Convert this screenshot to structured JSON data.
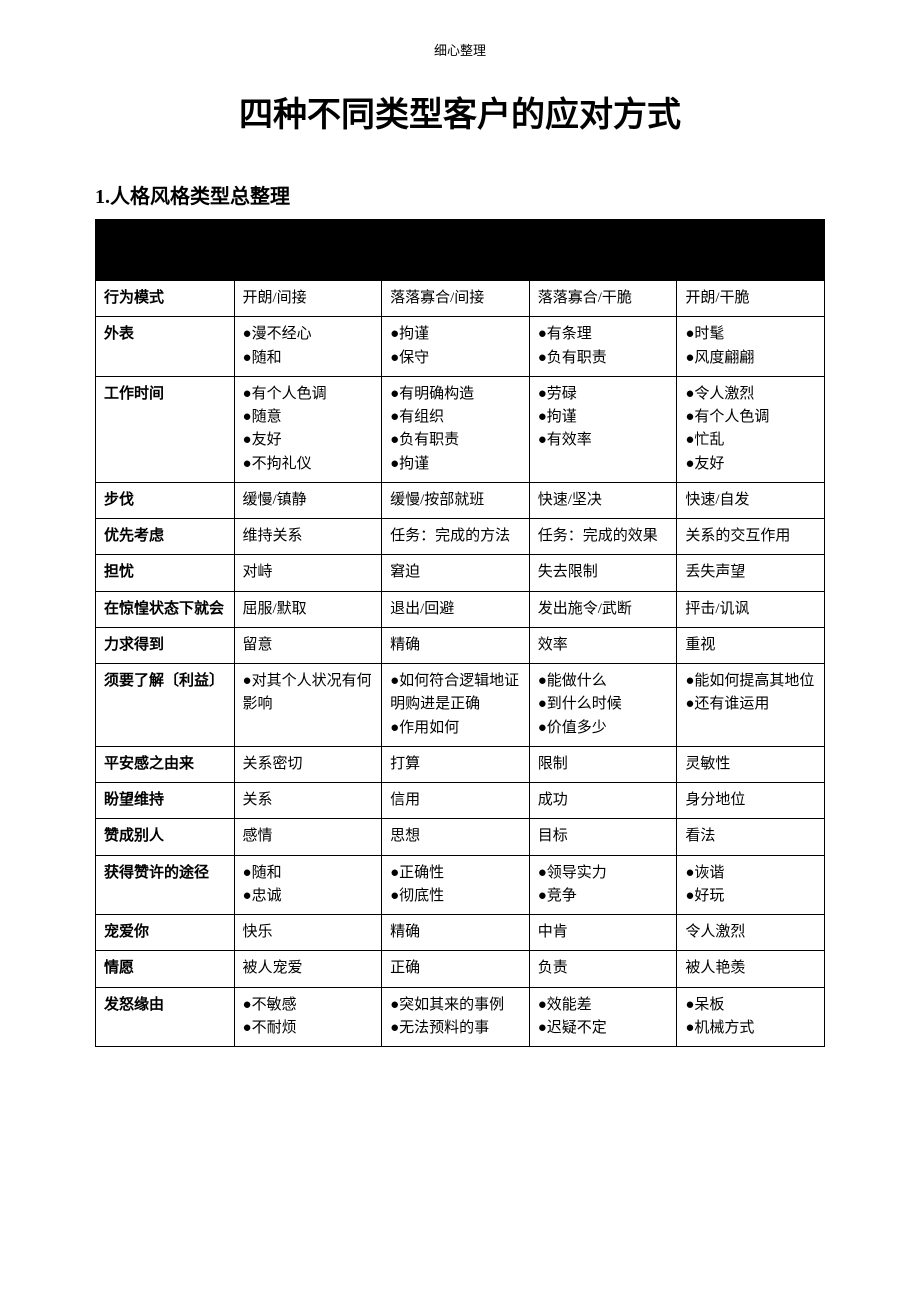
{
  "header_note": "细心整理",
  "main_title": "四种不同类型客户的应对方式",
  "section_title": "1.人格风格类型总整理",
  "table": {
    "background_color": "#ffffff",
    "border_color": "#000000",
    "header_bg": "#000000",
    "font_size": 15,
    "rows": [
      {
        "label": "行为模式",
        "c1": "开朗/间接",
        "c2": "落落寡合/间接",
        "c3": "落落寡合/干脆",
        "c4": "开朗/干脆"
      },
      {
        "label": "外表",
        "c1_list": [
          "漫不经心",
          "随和"
        ],
        "c2_list": [
          "拘谨",
          "保守"
        ],
        "c3_list": [
          "有条理",
          "负有职责"
        ],
        "c4_list": [
          "时髦",
          "风度翩翩"
        ]
      },
      {
        "label": "工作时间",
        "c1_list": [
          "有个人色调",
          "随意",
          "友好",
          "不拘礼仪"
        ],
        "c2_list": [
          "有明确构造",
          "有组织",
          "负有职责",
          "拘谨"
        ],
        "c3_list": [
          "劳碌",
          "拘谨",
          "有效率"
        ],
        "c4_list": [
          "令人激烈",
          "有个人色调",
          "忙乱",
          "友好"
        ]
      },
      {
        "label": "步伐",
        "c1": "缓慢/镇静",
        "c2": "缓慢/按部就班",
        "c3": "快速/坚决",
        "c4": "快速/自发"
      },
      {
        "label": "优先考虑",
        "c1": "维持关系",
        "c2": "任务：完成的方法",
        "c3": "任务：完成的效果",
        "c4": "关系的交互作用"
      },
      {
        "label": "担忧",
        "c1": "对峙",
        "c2": "窘迫",
        "c3": "失去限制",
        "c4": "丢失声望"
      },
      {
        "label": "在惊惶状态下就会",
        "c1": "屈服/默取",
        "c2": "退出/回避",
        "c3": "发出施令/武断",
        "c4": "抨击/讥讽"
      },
      {
        "label": "力求得到",
        "c1": "留意",
        "c2": "精确",
        "c3": "效率",
        "c4": "重视"
      },
      {
        "label": "须要了解〔利益〕",
        "c1_list": [
          "对其个人状况有何影响"
        ],
        "c2_list": [
          "如何符合逻辑地证明购进是正确",
          "作用如何"
        ],
        "c2_indent": [
          0,
          1
        ],
        "c3_list": [
          "能做什么",
          "到什么时候",
          "价值多少"
        ],
        "c4_list": [
          "能如何提高其地位",
          "还有谁运用"
        ]
      },
      {
        "label": "平安感之由来",
        "c1": "关系密切",
        "c2": "打算",
        "c3": "限制",
        "c4": "灵敏性"
      },
      {
        "label": "盼望维持",
        "c1": "关系",
        "c2": "信用",
        "c3": "成功",
        "c4": "身分地位"
      },
      {
        "label": "赞成别人",
        "c1": "感情",
        "c2": "思想",
        "c3": "目标",
        "c4": "看法"
      },
      {
        "label": "获得赞许的途径",
        "c1_list": [
          "随和",
          "忠诚"
        ],
        "c2_list": [
          "正确性",
          "彻底性"
        ],
        "c3_list": [
          "领导实力",
          "竞争"
        ],
        "c4_list": [
          "诙谐",
          "好玩"
        ]
      },
      {
        "label": "宠爱你",
        "c1": "快乐",
        "c2": "精确",
        "c3": "中肯",
        "c4": "令人激烈"
      },
      {
        "label": "情愿",
        "c1": "被人宠爱",
        "c2": "正确",
        "c3": "负责",
        "c4": "被人艳羡"
      },
      {
        "label": "发怒缘由",
        "c1_list": [
          "不敏感",
          "不耐烦"
        ],
        "c2_list": [
          "突如其来的事例",
          "无法预料的事"
        ],
        "c3_list": [
          "效能差",
          "迟疑不定"
        ],
        "c4_list": [
          "呆板",
          "机械方式"
        ]
      }
    ]
  }
}
